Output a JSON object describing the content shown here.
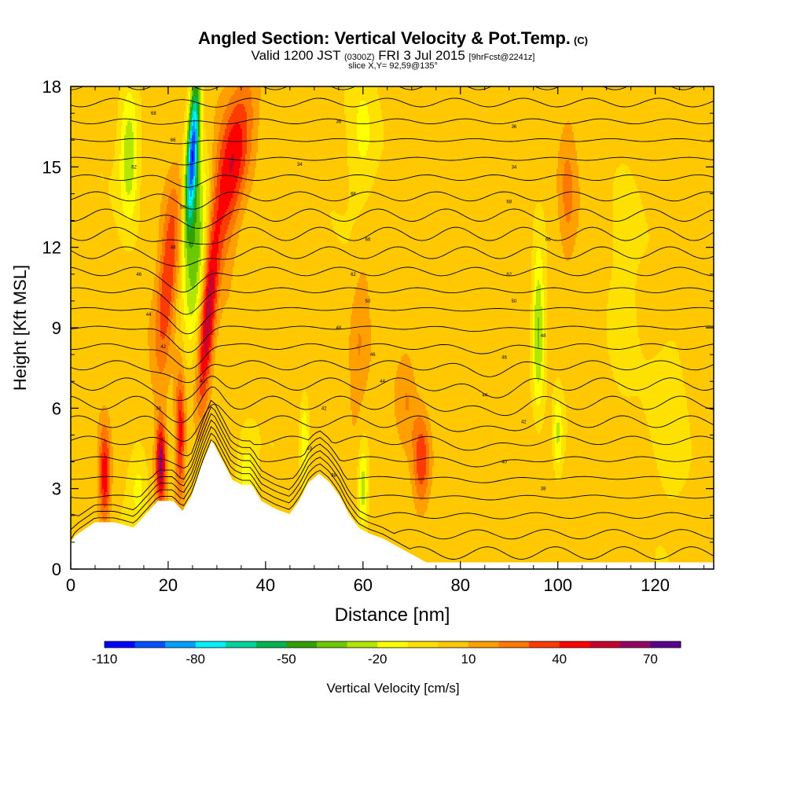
{
  "title": {
    "main": "Angled Section: Vertical Velocity & Pot.Temp.",
    "main_unit": "(C)",
    "valid_prefix": "Valid 1200 JST",
    "valid_utc": "(0300Z)",
    "valid_date": "FRI 3 Jul 2015",
    "forecast": "[9hrFcst@2241z]",
    "slice": "slice X,Y= 92,59@135°"
  },
  "chart_data": {
    "type": "heatmap",
    "xlabel": "Distance [nm]",
    "ylabel": "Height [Kft MSL]",
    "xlim": [
      0,
      132
    ],
    "ylim": [
      0,
      18
    ],
    "x_ticks": [
      "0",
      "20",
      "40",
      "60",
      "80",
      "100",
      "120"
    ],
    "y_ticks": [
      "0",
      "3",
      "6",
      "9",
      "12",
      "15",
      "18"
    ],
    "colorbar": {
      "label": "Vertical Velocity [cm/s]",
      "tick_labels": [
        "-110",
        "-80",
        "-50",
        "-20",
        "10",
        "40",
        "70"
      ],
      "levels": [
        -110,
        -100,
        -90,
        -80,
        -70,
        -60,
        -50,
        -40,
        -30,
        -20,
        -10,
        0,
        10,
        20,
        30,
        40,
        50,
        60,
        70,
        80
      ],
      "colors": [
        "#0000ff",
        "#0050ff",
        "#00a0ff",
        "#00f0ff",
        "#00d39b",
        "#00b450",
        "#32a000",
        "#6ec800",
        "#b4e600",
        "#ffff00",
        "#ffe100",
        "#ffc800",
        "#ffa000",
        "#ff7800",
        "#ff3c00",
        "#ff0000",
        "#c8002d",
        "#960064",
        "#5a008c"
      ]
    },
    "terrain_kft": [
      [
        0,
        0.9
      ],
      [
        1,
        1.2
      ],
      [
        5,
        1.7
      ],
      [
        9,
        1.7
      ],
      [
        13,
        1.5
      ],
      [
        16,
        2.1
      ],
      [
        18,
        2.5
      ],
      [
        21,
        2.5
      ],
      [
        23,
        2.1
      ],
      [
        25,
        2.7
      ],
      [
        27,
        3.8
      ],
      [
        29,
        4.7
      ],
      [
        31,
        4.0
      ],
      [
        33,
        3.3
      ],
      [
        35,
        3.1
      ],
      [
        37,
        3.1
      ],
      [
        39,
        2.5
      ],
      [
        42,
        2.2
      ],
      [
        45,
        2.0
      ],
      [
        47,
        2.5
      ],
      [
        49,
        3.2
      ],
      [
        51,
        3.5
      ],
      [
        53,
        3.2
      ],
      [
        55,
        2.7
      ],
      [
        57,
        2.0
      ],
      [
        59,
        1.5
      ],
      [
        61,
        1.3
      ],
      [
        64,
        1.1
      ],
      [
        67,
        0.8
      ],
      [
        70,
        0.5
      ],
      [
        73,
        0.2
      ],
      [
        76,
        0.1
      ],
      [
        79,
        0
      ]
    ],
    "theta_contour_labels_c": [
      "68",
      "66",
      "64",
      "62",
      "60",
      "58",
      "56",
      "54",
      "52",
      "50",
      "48",
      "46",
      "44",
      "42",
      "40",
      "38",
      "36",
      "34"
    ],
    "annotations": [
      "68",
      "66",
      "62",
      "50",
      "48",
      "46",
      "44",
      "42",
      "40",
      "38",
      "36",
      "34"
    ]
  }
}
